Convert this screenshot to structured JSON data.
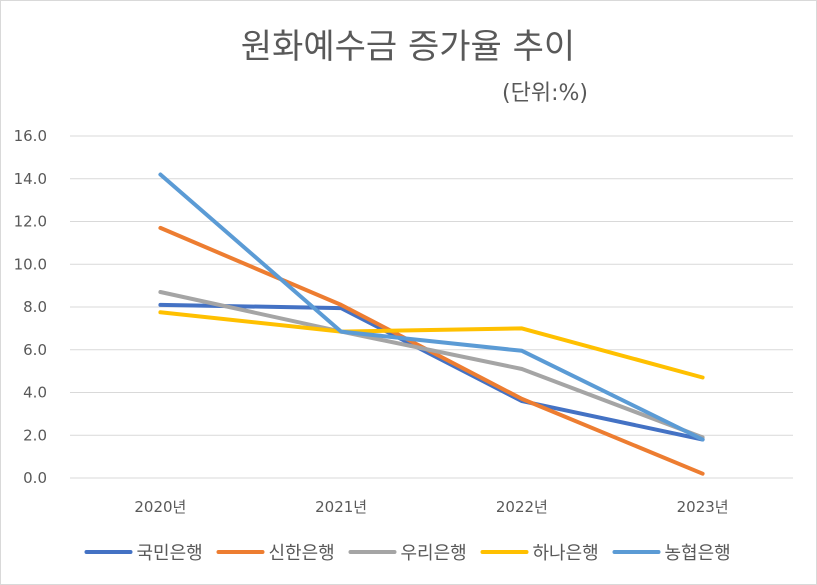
{
  "chart_data": {
    "type": "line",
    "title": "원화예수금 증가율 추이",
    "subtitle": "(단위:%)",
    "categories": [
      "2020년",
      "2021년",
      "2022년",
      "2023년"
    ],
    "ylim": [
      0,
      16
    ],
    "yticks": [
      "0.0",
      "2.0",
      "4.0",
      "6.0",
      "8.0",
      "10.0",
      "12.0",
      "14.0",
      "16.0"
    ],
    "grid": true,
    "legend_position": "bottom",
    "series": [
      {
        "name": "국민은행",
        "color": "#4472C4",
        "values": [
          8.1,
          7.95,
          3.6,
          1.8
        ]
      },
      {
        "name": "신한은행",
        "color": "#ED7D31",
        "values": [
          11.7,
          8.1,
          3.7,
          0.2
        ]
      },
      {
        "name": "우리은행",
        "color": "#A5A5A5",
        "values": [
          8.7,
          6.85,
          5.1,
          1.9
        ]
      },
      {
        "name": "하나은행",
        "color": "#FFC000",
        "values": [
          7.75,
          6.85,
          7.0,
          4.7
        ]
      },
      {
        "name": "농협은행",
        "color": "#5B9BD5",
        "values": [
          14.2,
          6.85,
          5.95,
          1.8
        ]
      }
    ]
  }
}
